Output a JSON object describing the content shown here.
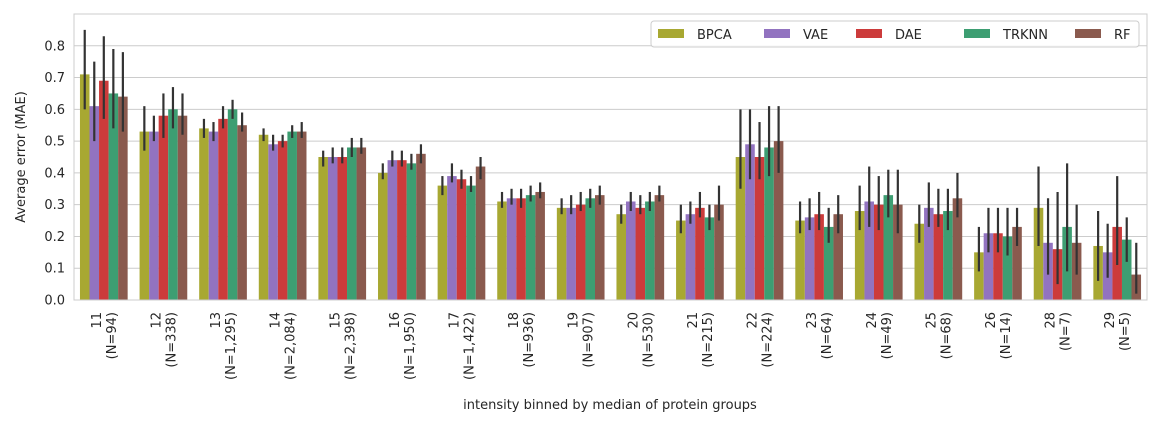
{
  "chart_data": {
    "type": "bar",
    "title": "",
    "xlabel": "intensity binned by median of protein groups",
    "ylabel": "Average error (MAE)",
    "ylim": [
      0,
      0.9
    ],
    "yticks": [
      "0.0",
      "0.1",
      "0.2",
      "0.3",
      "0.4",
      "0.5",
      "0.6",
      "0.7",
      "0.8"
    ],
    "grid": true,
    "legend_position": "top-right",
    "colors": {
      "BPCA": "#a8a832",
      "VAE": "#9273c0",
      "DAE": "#cc3b3b",
      "TRKNN": "#3d9e72",
      "RF": "#8a5a4e",
      "grid": "#cccccc",
      "errorbar": "#333333",
      "frame": "#cccccc"
    },
    "categories": [
      [
        "11",
        "(N=94)"
      ],
      [
        "12",
        "(N=338)"
      ],
      [
        "13",
        "(N=1,295)"
      ],
      [
        "14",
        "(N=2,084)"
      ],
      [
        "15",
        "(N=2,398)"
      ],
      [
        "16",
        "(N=1,950)"
      ],
      [
        "17",
        "(N=1,422)"
      ],
      [
        "18",
        "(N=936)"
      ],
      [
        "19",
        "(N=907)"
      ],
      [
        "20",
        "(N=530)"
      ],
      [
        "21",
        "(N=215)"
      ],
      [
        "22",
        "(N=224)"
      ],
      [
        "23",
        "(N=64)"
      ],
      [
        "24",
        "(N=49)"
      ],
      [
        "25",
        "(N=68)"
      ],
      [
        "26",
        "(N=14)"
      ],
      [
        "28",
        "(N=7)"
      ],
      [
        "29",
        "(N=5)"
      ]
    ],
    "series": [
      {
        "name": "BPCA",
        "values": [
          0.71,
          0.53,
          0.54,
          0.52,
          0.45,
          0.4,
          0.36,
          0.31,
          0.29,
          0.27,
          0.25,
          0.45,
          0.25,
          0.28,
          0.24,
          0.15,
          0.29,
          0.17
        ],
        "err_low": [
          0.6,
          0.47,
          0.51,
          0.5,
          0.42,
          0.38,
          0.33,
          0.29,
          0.27,
          0.24,
          0.21,
          0.35,
          0.21,
          0.22,
          0.18,
          0.09,
          0.17,
          0.06
        ],
        "err_high": [
          0.85,
          0.61,
          0.57,
          0.54,
          0.47,
          0.43,
          0.39,
          0.34,
          0.32,
          0.3,
          0.3,
          0.6,
          0.31,
          0.36,
          0.3,
          0.23,
          0.42,
          0.28
        ]
      },
      {
        "name": "VAE",
        "values": [
          0.61,
          0.53,
          0.53,
          0.49,
          0.45,
          0.44,
          0.39,
          0.32,
          0.29,
          0.31,
          0.27,
          0.49,
          0.26,
          0.31,
          0.29,
          0.21,
          0.18,
          0.15
        ],
        "err_low": [
          0.5,
          0.5,
          0.5,
          0.47,
          0.43,
          0.42,
          0.37,
          0.3,
          0.27,
          0.28,
          0.24,
          0.38,
          0.22,
          0.23,
          0.23,
          0.15,
          0.08,
          0.07
        ],
        "err_high": [
          0.75,
          0.58,
          0.56,
          0.52,
          0.48,
          0.47,
          0.43,
          0.35,
          0.33,
          0.34,
          0.31,
          0.6,
          0.32,
          0.42,
          0.37,
          0.29,
          0.32,
          0.24
        ]
      },
      {
        "name": "DAE",
        "values": [
          0.69,
          0.58,
          0.57,
          0.5,
          0.45,
          0.44,
          0.38,
          0.32,
          0.3,
          0.29,
          0.29,
          0.45,
          0.27,
          0.3,
          0.27,
          0.21,
          0.16,
          0.23
        ],
        "err_low": [
          0.57,
          0.51,
          0.54,
          0.48,
          0.43,
          0.42,
          0.35,
          0.29,
          0.28,
          0.27,
          0.26,
          0.38,
          0.22,
          0.22,
          0.23,
          0.15,
          0.05,
          0.11
        ],
        "err_high": [
          0.83,
          0.65,
          0.61,
          0.52,
          0.48,
          0.47,
          0.41,
          0.35,
          0.34,
          0.33,
          0.34,
          0.56,
          0.34,
          0.39,
          0.35,
          0.29,
          0.34,
          0.39
        ]
      },
      {
        "name": "TRKNN",
        "values": [
          0.65,
          0.6,
          0.6,
          0.53,
          0.48,
          0.43,
          0.36,
          0.33,
          0.32,
          0.31,
          0.26,
          0.48,
          0.23,
          0.33,
          0.28,
          0.2,
          0.23,
          0.19
        ],
        "err_low": [
          0.54,
          0.54,
          0.57,
          0.51,
          0.45,
          0.41,
          0.34,
          0.31,
          0.29,
          0.28,
          0.22,
          0.39,
          0.18,
          0.26,
          0.22,
          0.14,
          0.09,
          0.12
        ],
        "err_high": [
          0.79,
          0.67,
          0.63,
          0.55,
          0.51,
          0.46,
          0.39,
          0.36,
          0.35,
          0.34,
          0.3,
          0.61,
          0.29,
          0.41,
          0.35,
          0.29,
          0.43,
          0.26
        ]
      },
      {
        "name": "RF",
        "values": [
          0.64,
          0.58,
          0.55,
          0.53,
          0.48,
          0.46,
          0.42,
          0.34,
          0.33,
          0.33,
          0.3,
          0.5,
          0.27,
          0.3,
          0.32,
          0.23,
          0.18,
          0.08
        ],
        "err_low": [
          0.53,
          0.52,
          0.53,
          0.51,
          0.46,
          0.43,
          0.38,
          0.32,
          0.3,
          0.31,
          0.25,
          0.4,
          0.21,
          0.21,
          0.26,
          0.17,
          0.08,
          0.02
        ],
        "err_high": [
          0.78,
          0.65,
          0.59,
          0.56,
          0.51,
          0.49,
          0.45,
          0.37,
          0.36,
          0.36,
          0.36,
          0.61,
          0.33,
          0.41,
          0.4,
          0.29,
          0.3,
          0.18
        ]
      }
    ]
  }
}
